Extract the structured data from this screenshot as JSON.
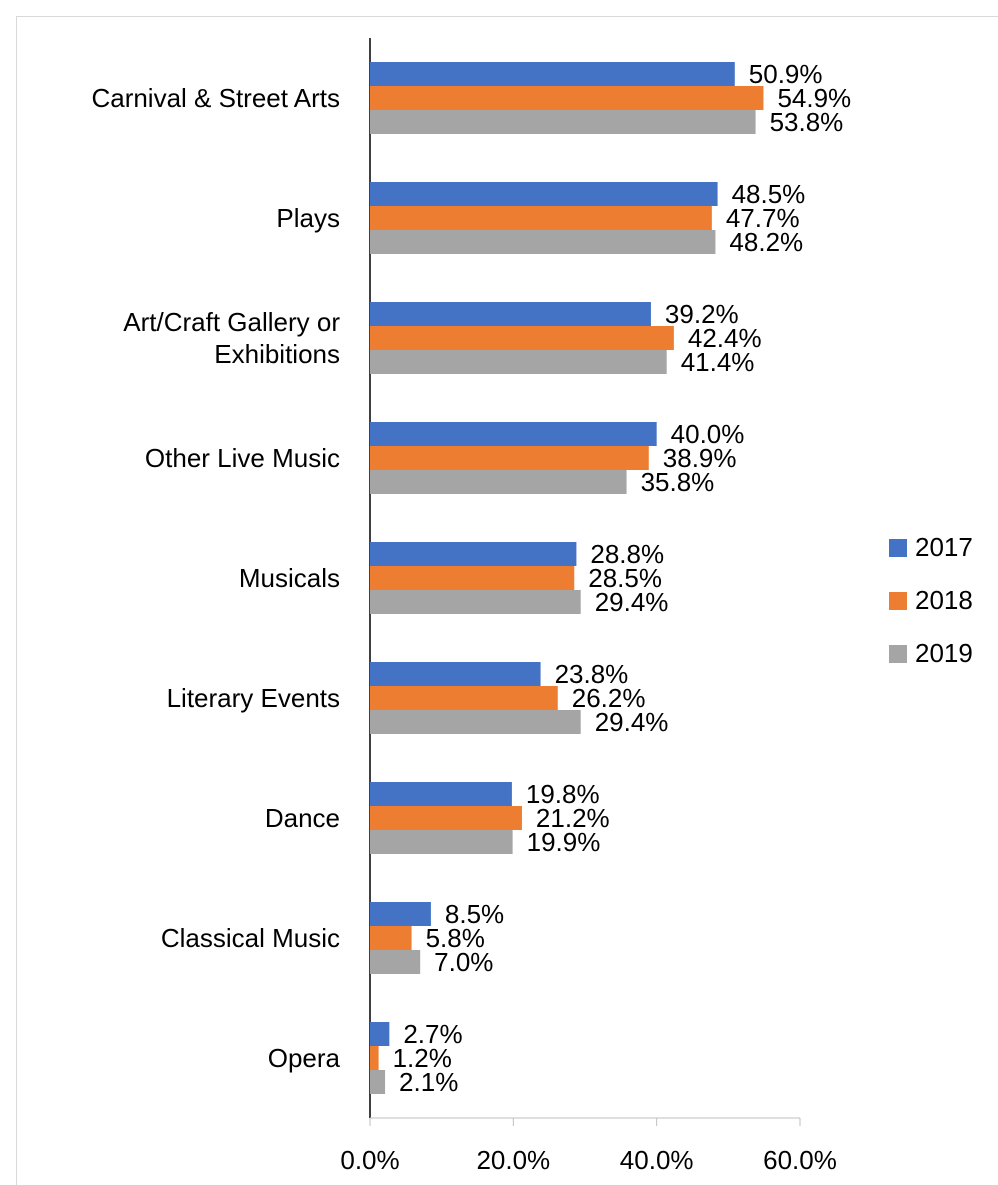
{
  "chart_data": {
    "type": "bar",
    "orientation": "horizontal",
    "categories": [
      "Carnival & Street Arts",
      "Plays",
      "Art/Craft Gallery or\nExhibitions",
      "Other Live Music",
      "Musicals",
      "Literary Events",
      "Dance",
      "Classical Music",
      "Opera"
    ],
    "series": [
      {
        "name": "2017",
        "color": "#4472c4",
        "values": [
          50.9,
          48.5,
          39.2,
          40.0,
          28.8,
          23.8,
          19.8,
          8.5,
          2.7
        ],
        "value_labels": [
          "50.9%",
          "48.5%",
          "39.2%",
          "40.0%",
          "28.8%",
          "23.8%",
          "19.8%",
          "8.5%",
          "2.7%"
        ]
      },
      {
        "name": "2018",
        "color": "#ed7d31",
        "values": [
          54.9,
          47.7,
          42.4,
          38.9,
          28.5,
          26.2,
          21.2,
          5.8,
          1.2
        ],
        "value_labels": [
          "54.9%",
          "47.7%",
          "42.4%",
          "38.9%",
          "28.5%",
          "26.2%",
          "21.2%",
          "5.8%",
          "1.2%"
        ]
      },
      {
        "name": "2019",
        "color": "#a5a5a5",
        "values": [
          53.8,
          48.2,
          41.4,
          35.8,
          29.4,
          29.4,
          19.9,
          7.0,
          2.1
        ],
        "value_labels": [
          "53.8%",
          "48.2%",
          "41.4%",
          "35.8%",
          "29.4%",
          "29.4%",
          "19.9%",
          "7.0%",
          "2.1%"
        ]
      }
    ],
    "xlim": [
      0,
      60
    ],
    "xticks": [
      {
        "value": 0,
        "label": "0.0%"
      },
      {
        "value": 20,
        "label": "20.0%"
      },
      {
        "value": 40,
        "label": "40.0%"
      },
      {
        "value": 60,
        "label": "60.0%"
      }
    ],
    "legend": "right"
  }
}
